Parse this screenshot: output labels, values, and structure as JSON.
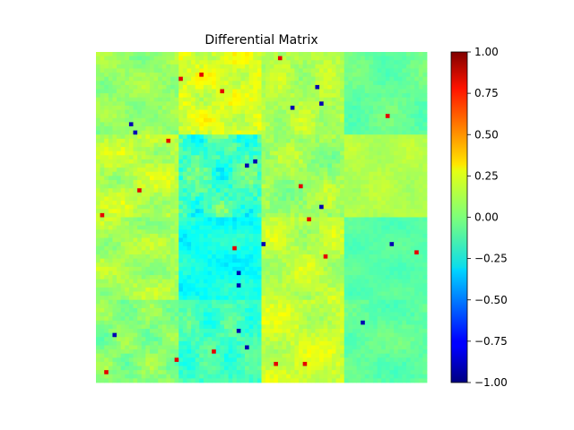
{
  "chart_data": {
    "type": "heatmap",
    "title": "Differential Matrix",
    "xlabel": "",
    "ylabel": "",
    "axes_visible": false,
    "grid": false,
    "colormap": "jet",
    "value_range": [
      -1.0,
      1.0
    ],
    "colorbar": {
      "position": "right",
      "ticks": [
        "1.00",
        "0.75",
        "0.50",
        "0.25",
        "0.00",
        "−0.25",
        "−0.50",
        "−0.75",
        "−1.00"
      ],
      "tick_values": [
        1.0,
        0.75,
        0.5,
        0.25,
        0.0,
        -0.25,
        -0.5,
        -0.75,
        -1.0
      ]
    },
    "block_grid": {
      "rows": 4,
      "cols": 4
    },
    "block_mean_values": [
      [
        0.05,
        0.18,
        0.1,
        -0.05
      ],
      [
        0.12,
        -0.12,
        0.06,
        0.1
      ],
      [
        0.08,
        -0.22,
        0.12,
        -0.08
      ],
      [
        0.02,
        -0.12,
        0.15,
        -0.06
      ]
    ],
    "block_texture_amplitude": [
      [
        0.1,
        0.14,
        0.12,
        0.08
      ],
      [
        0.14,
        0.22,
        0.14,
        0.06
      ],
      [
        0.12,
        0.12,
        0.12,
        0.05
      ],
      [
        0.12,
        0.14,
        0.13,
        0.08
      ]
    ]
  }
}
